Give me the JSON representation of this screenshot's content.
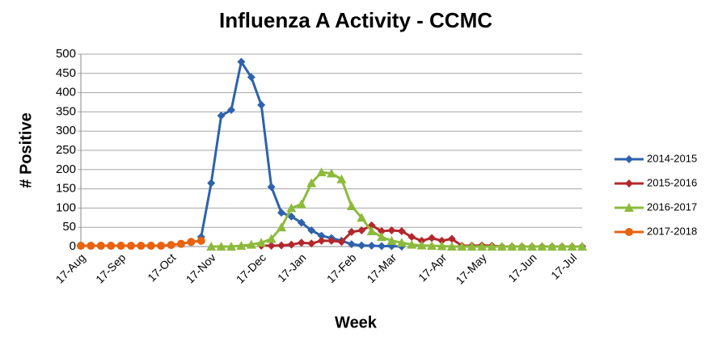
{
  "chart_data": {
    "type": "line",
    "title": "Influenza A Activity - CCMC",
    "x_label": "Week",
    "y_label": "# Positive",
    "categories": [
      "17-Aug",
      null,
      null,
      null,
      "17-Sep",
      null,
      null,
      null,
      null,
      "17-Oct",
      null,
      null,
      null,
      "17-Nov",
      null,
      null,
      null,
      null,
      "17-Dec",
      null,
      null,
      null,
      "17-Jan",
      null,
      null,
      null,
      null,
      "17-Feb",
      null,
      null,
      null,
      "17-Mar",
      null,
      null,
      null,
      null,
      "17-Apr",
      null,
      null,
      null,
      "17-May",
      null,
      null,
      null,
      null,
      "17-Jun",
      null,
      null,
      null,
      "17-Jul",
      null
    ],
    "series": [
      {
        "name": "2014-2015",
        "color": "#2e62ad",
        "marker": "diamond",
        "values": [
          null,
          null,
          null,
          null,
          null,
          null,
          null,
          null,
          null,
          null,
          null,
          null,
          25,
          165,
          340,
          355,
          480,
          440,
          368,
          155,
          88,
          78,
          62,
          42,
          28,
          22,
          15,
          6,
          3,
          2,
          1,
          1,
          0,
          null,
          null,
          null,
          null,
          null,
          null,
          null,
          null,
          null,
          null,
          null,
          null,
          null,
          null,
          null,
          null,
          null,
          null
        ]
      },
      {
        "name": "2015-2016",
        "color": "#b3282d",
        "marker": "diamond",
        "values": [
          null,
          null,
          null,
          null,
          null,
          null,
          null,
          null,
          null,
          null,
          null,
          null,
          null,
          null,
          null,
          null,
          null,
          null,
          2,
          2,
          3,
          5,
          10,
          8,
          15,
          15,
          12,
          38,
          42,
          55,
          40,
          42,
          40,
          25,
          15,
          22,
          15,
          20,
          2,
          2,
          3,
          2,
          0,
          0,
          0,
          0,
          0,
          0,
          0,
          0,
          0
        ]
      },
      {
        "name": "2016-2017",
        "color": "#8cbb3c",
        "marker": "triangle",
        "values": [
          null,
          null,
          null,
          null,
          null,
          null,
          null,
          null,
          null,
          null,
          null,
          null,
          null,
          0,
          0,
          0,
          2,
          5,
          10,
          20,
          50,
          100,
          110,
          165,
          193,
          190,
          175,
          105,
          75,
          40,
          25,
          15,
          10,
          5,
          3,
          2,
          1,
          0,
          0,
          0,
          0,
          0,
          0,
          0,
          0,
          0,
          0,
          0,
          0,
          0,
          0
        ]
      },
      {
        "name": "2017-2018",
        "color": "#e8620f",
        "marker": "circle",
        "values": [
          2,
          2,
          2,
          2,
          2,
          2,
          2,
          2,
          2,
          4,
          7,
          12,
          15,
          null,
          null,
          null,
          null,
          null,
          null,
          null,
          null,
          null,
          null,
          null,
          null,
          null,
          null,
          null,
          null,
          null,
          null,
          null,
          null,
          null,
          null,
          null,
          null,
          null,
          null,
          null,
          null,
          null,
          null,
          null,
          null,
          null,
          null,
          null,
          null,
          null,
          null
        ]
      }
    ],
    "ylim": [
      0,
      500
    ],
    "yticks": [
      0,
      50,
      100,
      150,
      200,
      250,
      300,
      350,
      400,
      450,
      500
    ],
    "grid": true,
    "legend": "right"
  }
}
